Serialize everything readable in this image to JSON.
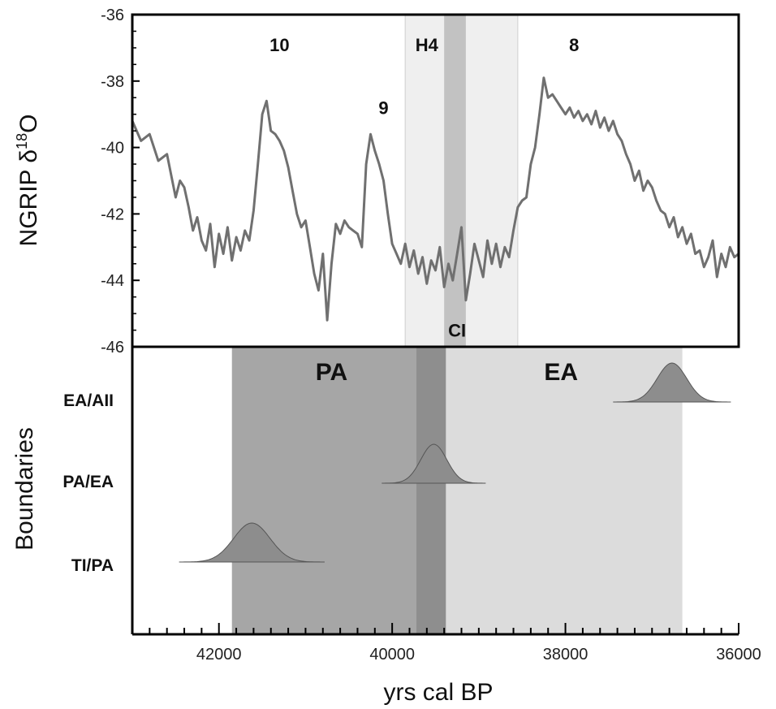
{
  "chart_data": [
    {
      "type": "line",
      "panel": "top",
      "ylabel_main": "NGRIP δ",
      "ylabel_sup": "18",
      "ylabel_tail": "O",
      "xlim": [
        43000,
        36000
      ],
      "ylim": [
        -46,
        -36
      ],
      "yticks": [
        -36,
        -38,
        -40,
        -42,
        -44,
        -46
      ],
      "grid": false,
      "series": [
        {
          "color": "#707070",
          "x": [
            43000,
            42900,
            42800,
            42700,
            42600,
            42500,
            42450,
            42400,
            42350,
            42300,
            42250,
            42200,
            42150,
            42100,
            42050,
            42000,
            41950,
            41900,
            41850,
            41800,
            41750,
            41700,
            41650,
            41600,
            41550,
            41500,
            41450,
            41400,
            41350,
            41300,
            41250,
            41200,
            41150,
            41100,
            41050,
            41000,
            40950,
            40900,
            40850,
            40800,
            40750,
            40700,
            40650,
            40600,
            40550,
            40500,
            40450,
            40400,
            40350,
            40300,
            40250,
            40200,
            40150,
            40100,
            40050,
            40000,
            39950,
            39900,
            39850,
            39800,
            39750,
            39700,
            39650,
            39600,
            39550,
            39500,
            39450,
            39400,
            39350,
            39300,
            39250,
            39200,
            39150,
            39100,
            39050,
            39000,
            38950,
            38900,
            38850,
            38800,
            38750,
            38700,
            38650,
            38600,
            38550,
            38500,
            38450,
            38400,
            38350,
            38300,
            38250,
            38200,
            38150,
            38100,
            38050,
            38000,
            37950,
            37900,
            37850,
            37800,
            37750,
            37700,
            37650,
            37600,
            37550,
            37500,
            37450,
            37400,
            37350,
            37300,
            37250,
            37200,
            37150,
            37100,
            37050,
            37000,
            36950,
            36900,
            36850,
            36800,
            36750,
            36700,
            36650,
            36600,
            36550,
            36500,
            36450,
            36400,
            36350,
            36300,
            36250,
            36200,
            36150,
            36100,
            36050,
            36000
          ],
          "y": [
            -39.2,
            -39.8,
            -39.6,
            -40.4,
            -40.2,
            -41.5,
            -41.0,
            -41.2,
            -41.8,
            -42.5,
            -42.1,
            -42.8,
            -43.1,
            -42.3,
            -43.6,
            -42.6,
            -43.2,
            -42.4,
            -43.4,
            -42.7,
            -43.1,
            -42.5,
            -42.8,
            -41.9,
            -40.5,
            -39.0,
            -38.6,
            -39.5,
            -39.6,
            -39.8,
            -40.1,
            -40.6,
            -41.3,
            -42.0,
            -42.4,
            -42.2,
            -43.0,
            -43.8,
            -44.3,
            -43.2,
            -45.2,
            -43.5,
            -42.3,
            -42.6,
            -42.2,
            -42.4,
            -42.5,
            -42.6,
            -43.0,
            -40.5,
            -39.6,
            -40.1,
            -40.5,
            -41.0,
            -42.0,
            -42.9,
            -43.2,
            -43.5,
            -42.9,
            -43.6,
            -43.1,
            -43.8,
            -43.3,
            -44.1,
            -43.4,
            -43.7,
            -43.0,
            -44.2,
            -43.5,
            -44.0,
            -43.2,
            -42.4,
            -44.6,
            -43.8,
            -42.9,
            -43.4,
            -43.9,
            -42.8,
            -43.5,
            -42.9,
            -43.6,
            -43.0,
            -43.3,
            -42.5,
            -41.8,
            -41.6,
            -41.5,
            -40.5,
            -40.0,
            -39.0,
            -37.9,
            -38.5,
            -38.4,
            -38.6,
            -38.8,
            -39.0,
            -38.8,
            -39.1,
            -38.9,
            -39.2,
            -39.0,
            -39.3,
            -38.9,
            -39.4,
            -39.1,
            -39.5,
            -39.2,
            -39.6,
            -39.8,
            -40.2,
            -40.5,
            -41.0,
            -40.7,
            -41.3,
            -41.0,
            -41.2,
            -41.6,
            -41.9,
            -42.0,
            -42.4,
            -42.1,
            -42.7,
            -42.4,
            -42.9,
            -42.6,
            -43.2,
            -43.1,
            -43.6,
            -43.3,
            -42.8,
            -43.9,
            -43.2,
            -43.6,
            -43.0,
            -43.3,
            -43.2
          ]
        }
      ],
      "annotations": [
        {
          "text": "10",
          "x": 41300,
          "y": -37.1
        },
        {
          "text": "9",
          "x": 40100,
          "y": -39.0
        },
        {
          "text": "H4",
          "x": 39600,
          "y": -37.1
        },
        {
          "text": "8",
          "x": 37900,
          "y": -37.1
        },
        {
          "text": "CI",
          "x": 39250,
          "y": -45.7
        }
      ],
      "shaded_bands": [
        {
          "x0": 39850,
          "x1": 38550,
          "color": "#efefef"
        },
        {
          "x0": 39400,
          "x1": 39150,
          "color": "#c2c2c2"
        }
      ]
    },
    {
      "type": "area",
      "panel": "bottom",
      "ylabel": "Boundaries",
      "xlabel": "yrs cal BP",
      "xlim": [
        43000,
        36000
      ],
      "xticks": [
        42000,
        40000,
        38000,
        36000
      ],
      "categories": [
        "EA/AII",
        "PA/EA",
        "TI/PA"
      ],
      "periods": [
        {
          "label": "PA",
          "x0": 41850,
          "x1": 39400,
          "color": "#a6a6a6"
        },
        {
          "label": "EA",
          "x0": 39400,
          "x1": 36650,
          "color": "#dcdcdc"
        }
      ],
      "overlap_band": {
        "x0": 39720,
        "x1": 39380,
        "color": "#8e8e8e"
      },
      "boundaries": [
        {
          "name": "EA/AII",
          "peak": 36770,
          "sd": 170,
          "range68": [
            37020,
            36630
          ],
          "range95": [
            37250,
            36500
          ]
        },
        {
          "name": "PA/EA",
          "peak": 39520,
          "sd": 150,
          "range68": [
            39750,
            39370
          ],
          "range95": [
            39980,
            39170
          ]
        },
        {
          "name": "TI/PA",
          "peak": 41620,
          "sd": 210,
          "range68": [
            41870,
            41420
          ],
          "range95": [
            42100,
            41220
          ]
        }
      ]
    }
  ]
}
